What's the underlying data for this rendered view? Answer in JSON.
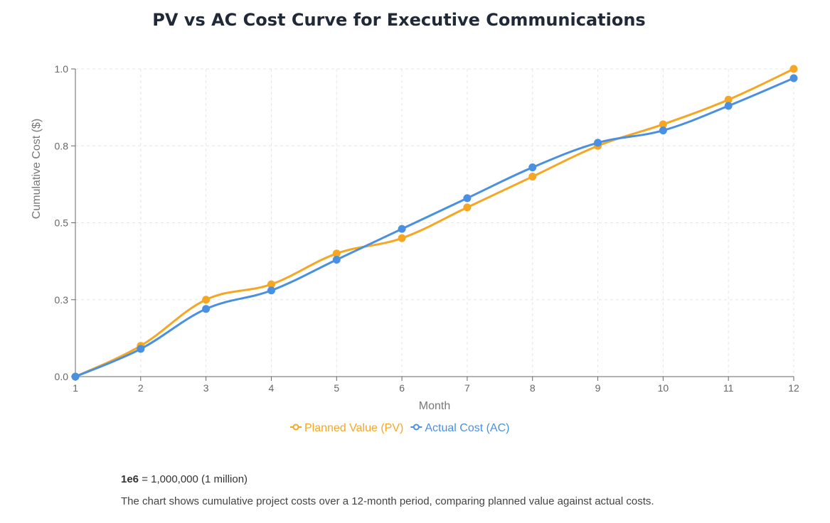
{
  "title": "PV vs AC Cost Curve for Executive Communications",
  "chart_data": {
    "type": "line",
    "x": [
      1,
      2,
      3,
      4,
      5,
      6,
      7,
      8,
      9,
      10,
      11,
      12
    ],
    "xlabel": "Month",
    "ylabel": "Cumulative Cost ($)",
    "xlim": [
      1,
      12
    ],
    "ylim": [
      0,
      1.0
    ],
    "yticks": [
      0.0,
      0.25,
      0.5,
      0.75,
      1.0
    ],
    "ytick_labels": [
      "0.0",
      "0.3",
      "0.5",
      "0.8",
      "1.0"
    ],
    "xtick_labels": [
      "1",
      "2",
      "3",
      "4",
      "5",
      "6",
      "7",
      "8",
      "9",
      "10",
      "11",
      "12"
    ],
    "grid": true,
    "legend_position": "bottom-center",
    "series": [
      {
        "name": "Planned Value (PV)",
        "color": "#f5a623",
        "values": [
          0.0,
          0.1,
          0.25,
          0.3,
          0.4,
          0.45,
          0.55,
          0.65,
          0.75,
          0.82,
          0.9,
          1.0
        ]
      },
      {
        "name": "Actual Cost (AC)",
        "color": "#4a90e2",
        "values": [
          0.0,
          0.09,
          0.22,
          0.28,
          0.38,
          0.48,
          0.58,
          0.68,
          0.76,
          0.8,
          0.88,
          0.97
        ]
      }
    ]
  },
  "notes": {
    "scale_key": "1e6",
    "scale_text": " = 1,000,000 (1 million)",
    "description": "The chart shows cumulative project costs over a 12-month period, comparing planned value against actual costs."
  }
}
